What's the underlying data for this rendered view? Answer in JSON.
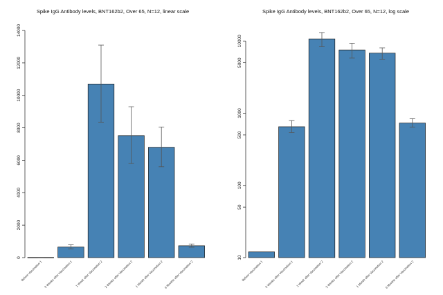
{
  "chart_data": [
    {
      "type": "bar",
      "title": "Spike IgG Antibody levels, BNT162b2, Over 65, N=12, linear scale",
      "xlabel": "",
      "ylabel": "",
      "scale": "linear",
      "ylim": [
        0,
        14000
      ],
      "yticks": [
        0,
        2000,
        4000,
        6000,
        8000,
        10000,
        12000,
        14000
      ],
      "ytick_labels": [
        "0",
        "2000",
        "4000",
        "6000",
        "8000",
        "10000",
        "12000",
        "14000"
      ],
      "categories": [
        "Before Vaccination 1",
        "3 Weeks after Vaccination 1",
        "1 Week after Vaccination 2",
        "2 Weeks after Vaccination 2",
        "1 Month after Vaccination 2",
        "6 Months after Vaccination 2"
      ],
      "values": [
        12,
        650,
        10700,
        7520,
        6800,
        730
      ],
      "error_low": [
        10,
        540,
        8350,
        5800,
        5600,
        640
      ],
      "error_high": [
        14,
        790,
        13100,
        9300,
        8050,
        840
      ],
      "bar_color": "#4682b4",
      "grid": false
    },
    {
      "type": "bar",
      "title": "Spike IgG Antibody levels, BNT162b2, Over 65, N=12, log scale",
      "xlabel": "",
      "ylabel": "",
      "scale": "log",
      "ylim": [
        10,
        14000
      ],
      "yticks": [
        10,
        50,
        100,
        500,
        1000,
        5000,
        10000
      ],
      "ytick_labels": [
        "10",
        "50",
        "100",
        "500",
        "1000",
        "5000",
        "10000"
      ],
      "categories": [
        "Before Vaccination 1",
        "3 Weeks after Vaccination 1",
        "1 Week after Vaccination 2",
        "2 Weeks after Vaccination 2",
        "1 Month after Vaccination 2",
        "6 Months after Vaccination 2"
      ],
      "values": [
        12,
        650,
        10700,
        7520,
        6800,
        730
      ],
      "error_low": [
        12,
        540,
        8350,
        5800,
        5600,
        640
      ],
      "error_high": [
        12,
        790,
        13100,
        9300,
        8050,
        840
      ],
      "bar_color": "#4682b4",
      "grid": false
    }
  ]
}
